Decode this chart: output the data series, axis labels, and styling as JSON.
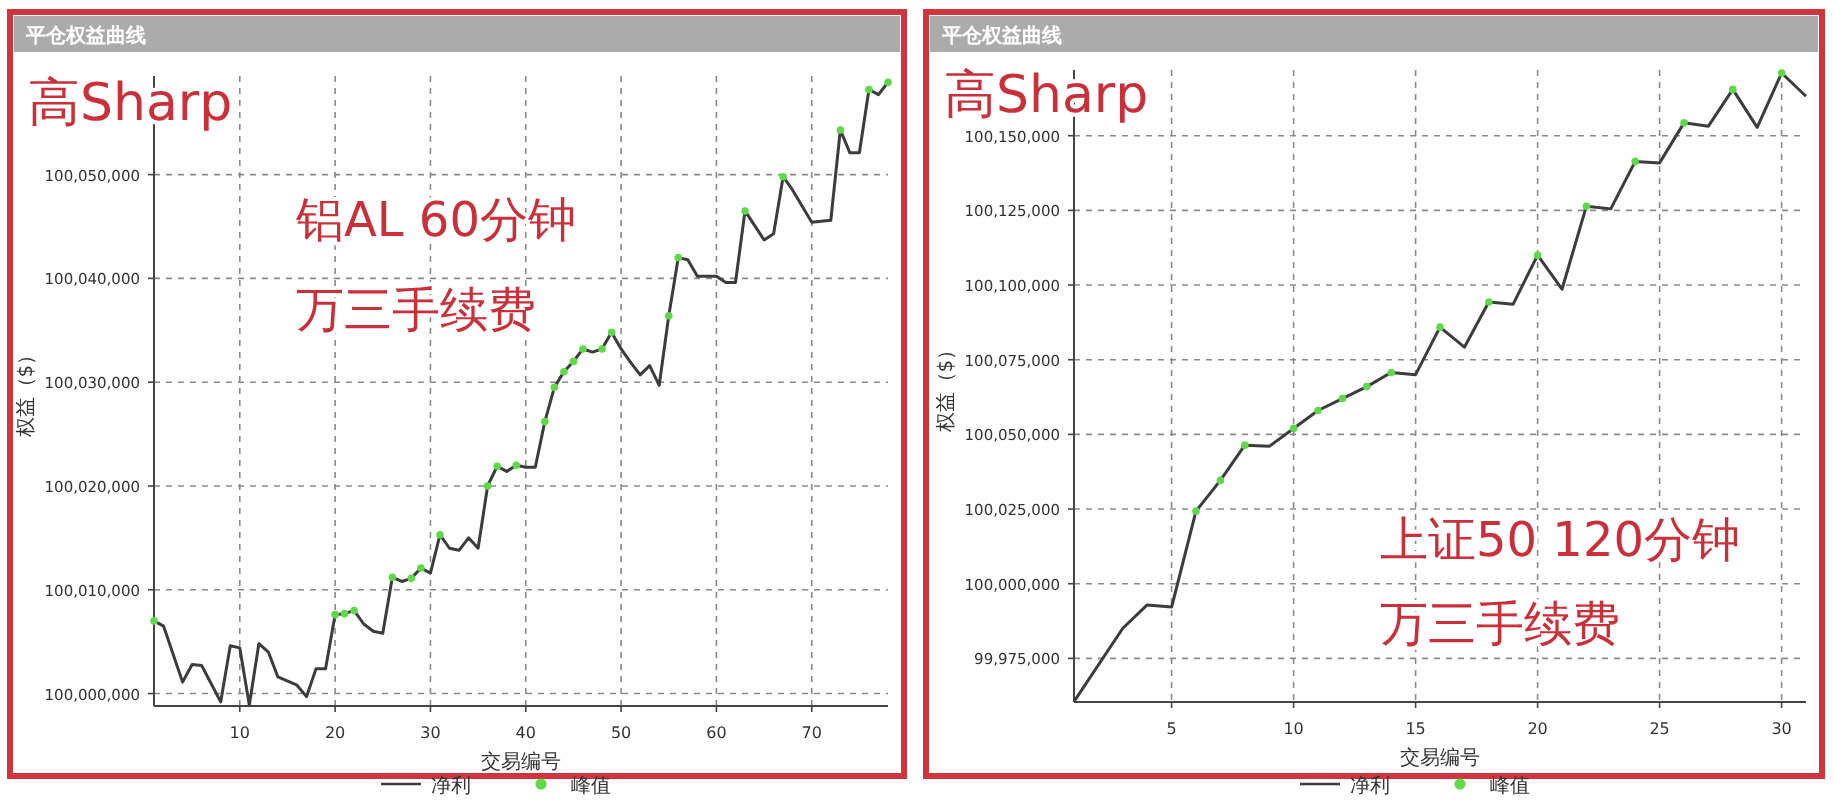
{
  "chart_data": [
    {
      "type": "line",
      "title": "平仓权益曲线",
      "xlabel": "交易编号",
      "ylabel": "权益（$）",
      "annotations": [
        "高Sharp",
        "铝AL 60分钟",
        "万三手续费"
      ],
      "xlim": [
        1,
        78
      ],
      "xticks": [
        10,
        20,
        30,
        40,
        50,
        60,
        70
      ],
      "ylim": [
        99998800,
        100059500
      ],
      "yticks": [
        {
          "value": 100000000,
          "label": "100,000,000"
        },
        {
          "value": 100010000,
          "label": "100,010,000"
        },
        {
          "value": 100020000,
          "label": "100,020,000"
        },
        {
          "value": 100030000,
          "label": "100,030,000"
        },
        {
          "value": 100040000,
          "label": "100,040,000"
        },
        {
          "value": 100050000,
          "label": "100,050,000"
        }
      ],
      "grid": true,
      "legend": "bottom",
      "series": [
        {
          "name": "净利",
          "color": "#3c3c3c",
          "x": [
            1,
            2,
            4,
            5,
            6,
            8,
            9,
            10,
            11,
            12,
            13,
            14,
            16,
            17,
            18,
            19,
            20,
            21,
            22,
            23,
            24,
            25,
            26,
            27,
            28,
            29,
            30,
            31,
            32,
            33,
            34,
            35,
            36,
            37,
            38,
            39,
            40,
            41,
            42,
            43,
            44,
            45,
            46,
            47,
            48,
            49,
            50,
            51,
            52,
            53,
            54,
            55,
            56,
            57,
            58,
            60,
            61,
            62,
            63,
            65,
            66,
            67,
            68,
            70,
            72,
            73,
            74,
            75,
            76,
            77,
            78
          ],
          "values": [
            100007000,
            100006500,
            100001100,
            100002800,
            100002700,
            99999200,
            100004600,
            100004400,
            99998900,
            100004800,
            100004000,
            100001600,
            100000800,
            99999700,
            100002400,
            100002400,
            100007600,
            100007700,
            100008000,
            100006700,
            100006000,
            100005800,
            100011200,
            100010800,
            100011100,
            100012100,
            100011600,
            100015300,
            100014000,
            100013800,
            100015000,
            100014000,
            100020000,
            100021900,
            100021400,
            100022000,
            100021800,
            100021800,
            100026200,
            100029500,
            100031000,
            100032000,
            100033200,
            100032900,
            100033200,
            100034800,
            100033200,
            100031900,
            100030700,
            100031600,
            100029700,
            100036400,
            100042000,
            100041800,
            100040200,
            100040200,
            100039600,
            100039600,
            100046500,
            100043700,
            100044300,
            100049800,
            100048500,
            100045400,
            100045600,
            100054300,
            100052100,
            100052100,
            100058200,
            100057700,
            100058900
          ]
        },
        {
          "name": "峰值",
          "type": "scatter",
          "marker": "circle",
          "color": "#5fd94a",
          "x": [
            1,
            20,
            21,
            22,
            26,
            28,
            29,
            31,
            36,
            37,
            39,
            42,
            43,
            44,
            45,
            46,
            48,
            49,
            55,
            56,
            63,
            67,
            73,
            76,
            78
          ],
          "values": [
            100007000,
            100007600,
            100007700,
            100008000,
            100011200,
            100011100,
            100012100,
            100015300,
            100020000,
            100021900,
            100022000,
            100026200,
            100029500,
            100031000,
            100032000,
            100033200,
            100033200,
            100034800,
            100036400,
            100042000,
            100046500,
            100049800,
            100054300,
            100058200,
            100058900
          ]
        }
      ]
    },
    {
      "type": "line",
      "title": "平仓权益曲线",
      "xlabel": "交易编号",
      "ylabel": "权益（$）",
      "annotations": [
        "高Sharp",
        "上证50 120分钟",
        "万三手续费"
      ],
      "xlim": [
        1,
        31
      ],
      "xticks": [
        5,
        10,
        15,
        20,
        25,
        30
      ],
      "ylim": [
        99960400,
        100172000
      ],
      "yticks": [
        {
          "value": 99975000,
          "label": "99,975,000"
        },
        {
          "value": 100000000,
          "label": "100,000,000"
        },
        {
          "value": 100025000,
          "label": "100,025,000"
        },
        {
          "value": 100050000,
          "label": "100,050,000"
        },
        {
          "value": 100075000,
          "label": "100,075,000"
        },
        {
          "value": 100100000,
          "label": "100,100,000"
        },
        {
          "value": 100125000,
          "label": "100,125,000"
        },
        {
          "value": 100150000,
          "label": "100,150,000"
        }
      ],
      "grid": true,
      "legend": "bottom",
      "series": [
        {
          "name": "净利",
          "color": "#3c3c3c",
          "x": [
            1,
            3,
            4,
            5,
            6,
            7,
            8,
            9,
            10,
            11,
            12,
            13,
            14,
            15,
            16,
            17,
            18,
            19,
            20,
            21,
            22,
            23,
            24,
            25,
            26,
            27,
            28,
            29,
            30,
            31
          ],
          "values": [
            99960500,
            99985100,
            99992900,
            99992200,
            100024300,
            100034600,
            100046400,
            100046000,
            100052000,
            100058000,
            100062000,
            100066000,
            100070700,
            100070000,
            100085900,
            100079200,
            100094300,
            100093600,
            100110000,
            100098600,
            100126400,
            100125500,
            100141400,
            100140900,
            100154300,
            100153200,
            100165500,
            100152800,
            100171000,
            100163200
          ]
        },
        {
          "name": "峰值",
          "type": "scatter",
          "marker": "circle",
          "color": "#5fd94a",
          "x": [
            6,
            7,
            8,
            10,
            11,
            12,
            13,
            14,
            16,
            18,
            20,
            22,
            24,
            26,
            28,
            30
          ],
          "values": [
            100024300,
            100034600,
            100046400,
            100052000,
            100058000,
            100062000,
            100066000,
            100070700,
            100085900,
            100094300,
            100110000,
            100126400,
            100141400,
            100154300,
            100165500,
            100171000
          ]
        }
      ]
    }
  ]
}
